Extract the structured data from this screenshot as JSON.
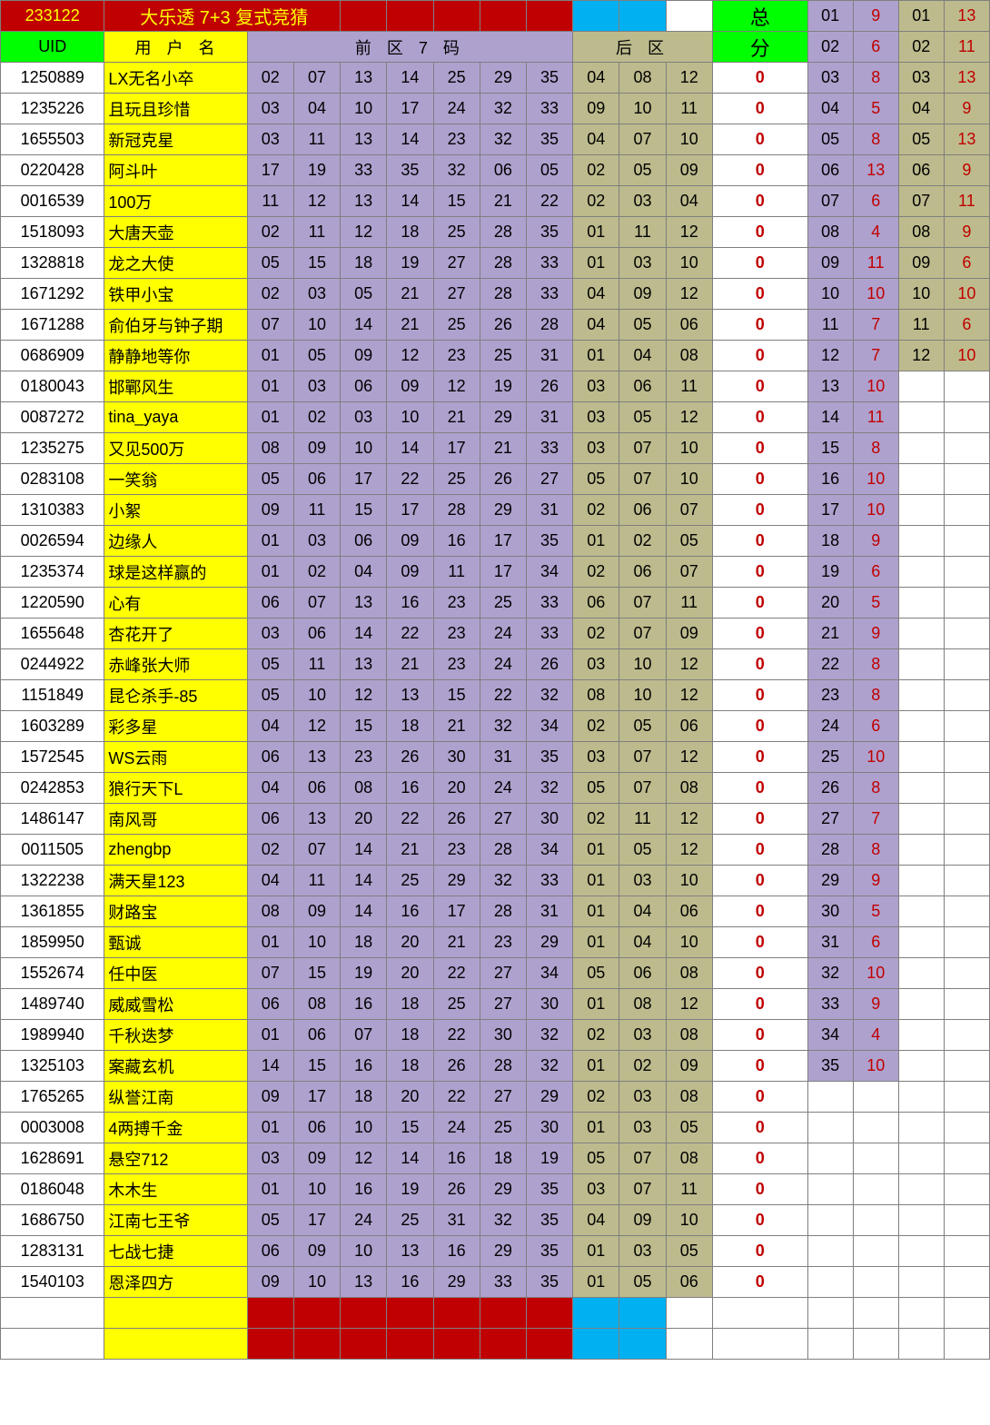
{
  "colors": {
    "red_bg": "#c00000",
    "yellow_bg": "#ffff00",
    "green_bg": "#00ff00",
    "purple_bg": "#afa1ce",
    "olive_bg": "#bdbb8d",
    "cyan_bg": "#00b0f0",
    "white_bg": "#ffffff",
    "red_text": "#c00000",
    "yellow_text": "#ffff00",
    "black_text": "#000000"
  },
  "header1": {
    "issue": "233122",
    "title": "大乐透 7+3 复式竞猜",
    "zong": "总",
    "side": [
      "01",
      "9",
      "01",
      "13"
    ]
  },
  "header2": {
    "uid": "UID",
    "name": "用 户 名",
    "front": "前 区 7 码",
    "back": "后 区",
    "fen": "分",
    "side": [
      "02",
      "6",
      "02",
      "11"
    ]
  },
  "rows": [
    {
      "uid": "1250889",
      "name": "LX无名小卒",
      "f": [
        "02",
        "07",
        "13",
        "14",
        "25",
        "29",
        "35"
      ],
      "b": [
        "04",
        "08",
        "12"
      ],
      "s": "0",
      "side": [
        "03",
        "8",
        "03",
        "13"
      ]
    },
    {
      "uid": "1235226",
      "name": "且玩且珍惜",
      "f": [
        "03",
        "04",
        "10",
        "17",
        "24",
        "32",
        "33"
      ],
      "b": [
        "09",
        "10",
        "11"
      ],
      "s": "0",
      "side": [
        "04",
        "5",
        "04",
        "9"
      ]
    },
    {
      "uid": "1655503",
      "name": "新冠克星",
      "f": [
        "03",
        "11",
        "13",
        "14",
        "23",
        "32",
        "35"
      ],
      "b": [
        "04",
        "07",
        "10"
      ],
      "s": "0",
      "side": [
        "05",
        "8",
        "05",
        "13"
      ]
    },
    {
      "uid": "0220428",
      "name": "阿斗叶",
      "f": [
        "17",
        "19",
        "33",
        "35",
        "32",
        "06",
        "05"
      ],
      "b": [
        "02",
        "05",
        "09"
      ],
      "s": "0",
      "side": [
        "06",
        "13",
        "06",
        "9"
      ]
    },
    {
      "uid": "0016539",
      "name": "100万",
      "f": [
        "11",
        "12",
        "13",
        "14",
        "15",
        "21",
        "22"
      ],
      "b": [
        "02",
        "03",
        "04"
      ],
      "s": "0",
      "side": [
        "07",
        "6",
        "07",
        "11"
      ]
    },
    {
      "uid": "1518093",
      "name": "大唐天壶",
      "f": [
        "02",
        "11",
        "12",
        "18",
        "25",
        "28",
        "35"
      ],
      "b": [
        "01",
        "11",
        "12"
      ],
      "s": "0",
      "side": [
        "08",
        "4",
        "08",
        "9"
      ]
    },
    {
      "uid": "1328818",
      "name": "龙之大使",
      "f": [
        "05",
        "15",
        "18",
        "19",
        "27",
        "28",
        "33"
      ],
      "b": [
        "01",
        "03",
        "10"
      ],
      "s": "0",
      "side": [
        "09",
        "11",
        "09",
        "6"
      ]
    },
    {
      "uid": "1671292",
      "name": "铁甲小宝",
      "f": [
        "02",
        "03",
        "05",
        "21",
        "27",
        "28",
        "33"
      ],
      "b": [
        "04",
        "09",
        "12"
      ],
      "s": "0",
      "side": [
        "10",
        "10",
        "10",
        "10"
      ]
    },
    {
      "uid": "1671288",
      "name": "俞伯牙与钟子期",
      "f": [
        "07",
        "10",
        "14",
        "21",
        "25",
        "26",
        "28"
      ],
      "b": [
        "04",
        "05",
        "06"
      ],
      "s": "0",
      "side": [
        "11",
        "7",
        "11",
        "6"
      ]
    },
    {
      "uid": "0686909",
      "name": "静静地等你",
      "f": [
        "01",
        "05",
        "09",
        "12",
        "23",
        "25",
        "31"
      ],
      "b": [
        "01",
        "04",
        "08"
      ],
      "s": "0",
      "side": [
        "12",
        "7",
        "12",
        "10"
      ]
    },
    {
      "uid": "0180043",
      "name": "邯鄲风生",
      "f": [
        "01",
        "03",
        "06",
        "09",
        "12",
        "19",
        "26"
      ],
      "b": [
        "03",
        "06",
        "11"
      ],
      "s": "0",
      "side": [
        "13",
        "10",
        "",
        ""
      ]
    },
    {
      "uid": "0087272",
      "name": "tina_yaya",
      "f": [
        "01",
        "02",
        "03",
        "10",
        "21",
        "29",
        "31"
      ],
      "b": [
        "03",
        "05",
        "12"
      ],
      "s": "0",
      "side": [
        "14",
        "11",
        "",
        ""
      ]
    },
    {
      "uid": "1235275",
      "name": "又见500万",
      "f": [
        "08",
        "09",
        "10",
        "14",
        "17",
        "21",
        "33"
      ],
      "b": [
        "03",
        "07",
        "10"
      ],
      "s": "0",
      "side": [
        "15",
        "8",
        "",
        ""
      ]
    },
    {
      "uid": "0283108",
      "name": "一笑翁",
      "f": [
        "05",
        "06",
        "17",
        "22",
        "25",
        "26",
        "27"
      ],
      "b": [
        "05",
        "07",
        "10"
      ],
      "s": "0",
      "side": [
        "16",
        "10",
        "",
        ""
      ]
    },
    {
      "uid": "1310383",
      "name": "小絮",
      "f": [
        "09",
        "11",
        "15",
        "17",
        "28",
        "29",
        "31"
      ],
      "b": [
        "02",
        "06",
        "07"
      ],
      "s": "0",
      "side": [
        "17",
        "10",
        "",
        ""
      ]
    },
    {
      "uid": "0026594",
      "name": "边缘人",
      "f": [
        "01",
        "03",
        "06",
        "09",
        "16",
        "17",
        "35"
      ],
      "b": [
        "01",
        "02",
        "05"
      ],
      "s": "0",
      "side": [
        "18",
        "9",
        "",
        ""
      ]
    },
    {
      "uid": "1235374",
      "name": "球是这样赢的",
      "f": [
        "01",
        "02",
        "04",
        "09",
        "11",
        "17",
        "34"
      ],
      "b": [
        "02",
        "06",
        "07"
      ],
      "s": "0",
      "side": [
        "19",
        "6",
        "",
        ""
      ]
    },
    {
      "uid": "1220590",
      "name": "心有",
      "f": [
        "06",
        "07",
        "13",
        "16",
        "23",
        "25",
        "33"
      ],
      "b": [
        "06",
        "07",
        "11"
      ],
      "s": "0",
      "side": [
        "20",
        "5",
        "",
        ""
      ]
    },
    {
      "uid": "1655648",
      "name": "杏花开了",
      "f": [
        "03",
        "06",
        "14",
        "22",
        "23",
        "24",
        "33"
      ],
      "b": [
        "02",
        "07",
        "09"
      ],
      "s": "0",
      "side": [
        "21",
        "9",
        "",
        ""
      ]
    },
    {
      "uid": "0244922",
      "name": "赤峰张大师",
      "f": [
        "05",
        "11",
        "13",
        "21",
        "23",
        "24",
        "26"
      ],
      "b": [
        "03",
        "10",
        "12"
      ],
      "s": "0",
      "side": [
        "22",
        "8",
        "",
        ""
      ]
    },
    {
      "uid": "1151849",
      "name": "昆仑杀手-85",
      "f": [
        "05",
        "10",
        "12",
        "13",
        "15",
        "22",
        "32"
      ],
      "b": [
        "08",
        "10",
        "12"
      ],
      "s": "0",
      "side": [
        "23",
        "8",
        "",
        ""
      ]
    },
    {
      "uid": "1603289",
      "name": "彩多星",
      "f": [
        "04",
        "12",
        "15",
        "18",
        "21",
        "32",
        "34"
      ],
      "b": [
        "02",
        "05",
        "06"
      ],
      "s": "0",
      "side": [
        "24",
        "6",
        "",
        ""
      ]
    },
    {
      "uid": "1572545",
      "name": "WS云雨",
      "f": [
        "06",
        "13",
        "23",
        "26",
        "30",
        "31",
        "35"
      ],
      "b": [
        "03",
        "07",
        "12"
      ],
      "s": "0",
      "side": [
        "25",
        "10",
        "",
        ""
      ]
    },
    {
      "uid": "0242853",
      "name": "狼行天下L",
      "f": [
        "04",
        "06",
        "08",
        "16",
        "20",
        "24",
        "32"
      ],
      "b": [
        "05",
        "07",
        "08"
      ],
      "s": "0",
      "side": [
        "26",
        "8",
        "",
        ""
      ]
    },
    {
      "uid": "1486147",
      "name": "南风哥",
      "f": [
        "06",
        "13",
        "20",
        "22",
        "26",
        "27",
        "30"
      ],
      "b": [
        "02",
        "11",
        "12"
      ],
      "s": "0",
      "side": [
        "27",
        "7",
        "",
        ""
      ]
    },
    {
      "uid": "0011505",
      "name": "zhengbp",
      "f": [
        "02",
        "07",
        "14",
        "21",
        "23",
        "28",
        "34"
      ],
      "b": [
        "01",
        "05",
        "12"
      ],
      "s": "0",
      "side": [
        "28",
        "8",
        "",
        ""
      ]
    },
    {
      "uid": "1322238",
      "name": "满天星123",
      "f": [
        "04",
        "11",
        "14",
        "25",
        "29",
        "32",
        "33"
      ],
      "b": [
        "01",
        "03",
        "10"
      ],
      "s": "0",
      "side": [
        "29",
        "9",
        "",
        ""
      ]
    },
    {
      "uid": "1361855",
      "name": "财路宝",
      "f": [
        "08",
        "09",
        "14",
        "16",
        "17",
        "28",
        "31"
      ],
      "b": [
        "01",
        "04",
        "06"
      ],
      "s": "0",
      "side": [
        "30",
        "5",
        "",
        ""
      ]
    },
    {
      "uid": "1859950",
      "name": "甄诚",
      "f": [
        "01",
        "10",
        "18",
        "20",
        "21",
        "23",
        "29"
      ],
      "b": [
        "01",
        "04",
        "10"
      ],
      "s": "0",
      "side": [
        "31",
        "6",
        "",
        ""
      ]
    },
    {
      "uid": "1552674",
      "name": "任中医",
      "f": [
        "07",
        "15",
        "19",
        "20",
        "22",
        "27",
        "34"
      ],
      "b": [
        "05",
        "06",
        "08"
      ],
      "s": "0",
      "side": [
        "32",
        "10",
        "",
        ""
      ]
    },
    {
      "uid": "1489740",
      "name": "威威雪松",
      "f": [
        "06",
        "08",
        "16",
        "18",
        "25",
        "27",
        "30"
      ],
      "b": [
        "01",
        "08",
        "12"
      ],
      "s": "0",
      "side": [
        "33",
        "9",
        "",
        ""
      ]
    },
    {
      "uid": "1989940",
      "name": "千秋迭梦",
      "f": [
        "01",
        "06",
        "07",
        "18",
        "22",
        "30",
        "32"
      ],
      "b": [
        "02",
        "03",
        "08"
      ],
      "s": "0",
      "side": [
        "34",
        "4",
        "",
        ""
      ]
    },
    {
      "uid": "1325103",
      "name": "案藏玄机",
      "f": [
        "14",
        "15",
        "16",
        "18",
        "26",
        "28",
        "32"
      ],
      "b": [
        "01",
        "02",
        "09"
      ],
      "s": "0",
      "side": [
        "35",
        "10",
        "",
        ""
      ]
    },
    {
      "uid": "1765265",
      "name": "纵誉江南",
      "f": [
        "09",
        "17",
        "18",
        "20",
        "22",
        "27",
        "29"
      ],
      "b": [
        "02",
        "03",
        "08"
      ],
      "s": "0",
      "side": [
        "",
        "",
        "",
        ""
      ]
    },
    {
      "uid": "0003008",
      "name": "4两搏千金",
      "f": [
        "01",
        "06",
        "10",
        "15",
        "24",
        "25",
        "30"
      ],
      "b": [
        "01",
        "03",
        "05"
      ],
      "s": "0",
      "side": [
        "",
        "",
        "",
        ""
      ]
    },
    {
      "uid": "1628691",
      "name": "悬空712",
      "f": [
        "03",
        "09",
        "12",
        "14",
        "16",
        "18",
        "19"
      ],
      "b": [
        "05",
        "07",
        "08"
      ],
      "s": "0",
      "side": [
        "",
        "",
        "",
        ""
      ]
    },
    {
      "uid": "0186048",
      "name": "木木生",
      "f": [
        "01",
        "10",
        "16",
        "19",
        "26",
        "29",
        "35"
      ],
      "b": [
        "03",
        "07",
        "11"
      ],
      "s": "0",
      "side": [
        "",
        "",
        "",
        ""
      ]
    },
    {
      "uid": "1686750",
      "name": "江南七王爷",
      "f": [
        "05",
        "17",
        "24",
        "25",
        "31",
        "32",
        "35"
      ],
      "b": [
        "04",
        "09",
        "10"
      ],
      "s": "0",
      "side": [
        "",
        "",
        "",
        ""
      ]
    },
    {
      "uid": "1283131",
      "name": "七战七捷",
      "f": [
        "06",
        "09",
        "10",
        "13",
        "16",
        "29",
        "35"
      ],
      "b": [
        "01",
        "03",
        "05"
      ],
      "s": "0",
      "side": [
        "",
        "",
        "",
        ""
      ]
    },
    {
      "uid": "1540103",
      "name": "恩泽四方",
      "f": [
        "09",
        "10",
        "13",
        "16",
        "29",
        "33",
        "35"
      ],
      "b": [
        "01",
        "05",
        "06"
      ],
      "s": "0",
      "side": [
        "",
        "",
        "",
        ""
      ]
    }
  ]
}
